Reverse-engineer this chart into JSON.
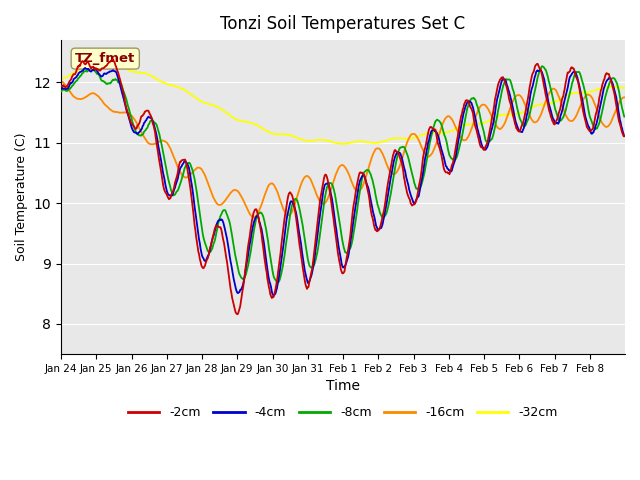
{
  "title": "Tonzi Soil Temperatures Set C",
  "xlabel": "Time",
  "ylabel": "Soil Temperature (C)",
  "ylim": [
    7.5,
    12.7
  ],
  "annotation_text": "TZ_fmet",
  "bg_color": "#e8e8e8",
  "series_colors": [
    "#cc0000",
    "#0000cc",
    "#00aa00",
    "#ff8800",
    "#ffff00"
  ],
  "series_labels": [
    "-2cm",
    "-4cm",
    "-8cm",
    "-16cm",
    "-32cm"
  ],
  "xtick_labels": [
    "Jan 24",
    "Jan 25",
    "Jan 26",
    "Jan 27",
    "Jan 28",
    "Jan 29",
    "Jan 30",
    "Jan 31",
    "Feb 1",
    "Feb 2",
    "Feb 3",
    "Feb 4",
    "Feb 5",
    "Feb 6",
    "Feb 7",
    "Feb 8"
  ],
  "linewidth": 1.3
}
